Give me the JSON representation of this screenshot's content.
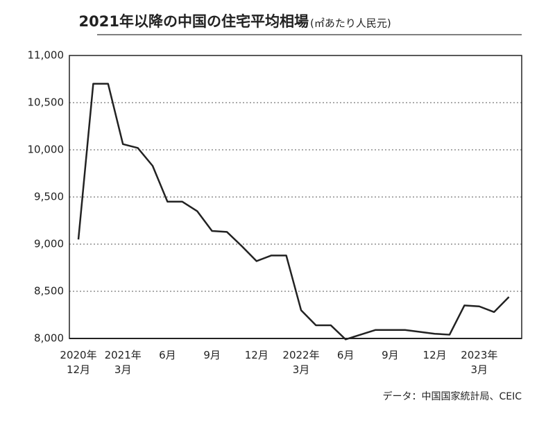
{
  "chart_data": {
    "type": "line",
    "title": "2021年以降の中国の住宅平均相場",
    "subtitle": "(㎡あたり人民元)",
    "source": "データ：中国国家統計局、CEIC",
    "categories": [
      "2020年\n12月",
      null,
      null,
      "2021年\n3月",
      null,
      null,
      "6月",
      null,
      null,
      "9月",
      null,
      null,
      "12月",
      null,
      null,
      "2022年\n3月",
      null,
      null,
      "6月",
      null,
      null,
      "9月",
      null,
      null,
      "12月",
      null,
      null,
      "2023年\n3月",
      null,
      null
    ],
    "values": [
      9050,
      10700,
      10700,
      10060,
      10020,
      9830,
      9450,
      9450,
      9350,
      9140,
      9130,
      8980,
      8820,
      8880,
      8880,
      8300,
      8140,
      8140,
      7990,
      8040,
      8090,
      8090,
      8090,
      8070,
      8050,
      8040,
      8350,
      8340,
      8280,
      8440
    ],
    "color": "#222222",
    "ylim": [
      8000,
      11000
    ],
    "yticks": [
      {
        "value": 8000,
        "label": "8,000"
      },
      {
        "value": 8500,
        "label": "8,500"
      },
      {
        "value": 9000,
        "label": "9,000"
      },
      {
        "value": 9500,
        "label": "9,500"
      },
      {
        "value": 10000,
        "label": "10,000"
      },
      {
        "value": 10500,
        "label": "10,500"
      },
      {
        "value": 11000,
        "label": "11,000"
      }
    ],
    "grid": true
  }
}
